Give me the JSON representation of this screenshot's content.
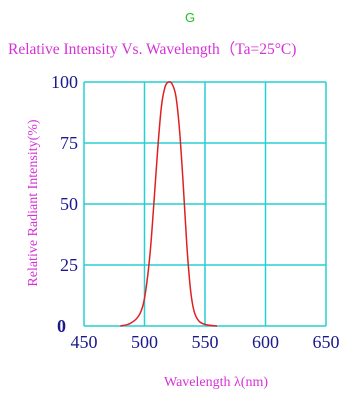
{
  "color_tag": "G",
  "chart_data": {
    "type": "line",
    "title": "Relative Intensity  Vs. Wavelength（Ta=25°C)",
    "xlabel": "Wavelength λ(nm)",
    "ylabel": "Relative Radiant Intensity(%)",
    "xlim": [
      450,
      650
    ],
    "ylim": [
      0,
      100
    ],
    "x_ticks": [
      "450",
      "500",
      "550",
      "600",
      "650"
    ],
    "y_ticks": [
      "0",
      "25",
      "50",
      "75",
      "100"
    ],
    "grid": true,
    "series": [
      {
        "color": "#e02020",
        "x": [
          480,
          488,
          495,
          499,
          502,
          505,
          508,
          511,
          514,
          517,
          520,
          523,
          526,
          529,
          532,
          535,
          538,
          541,
          545,
          551,
          560
        ],
        "y": [
          0,
          1,
          4,
          9,
          18,
          32,
          52,
          73,
          90,
          98,
          100,
          99,
          94,
          80,
          58,
          33,
          15,
          6,
          2,
          0.5,
          0
        ]
      }
    ]
  }
}
